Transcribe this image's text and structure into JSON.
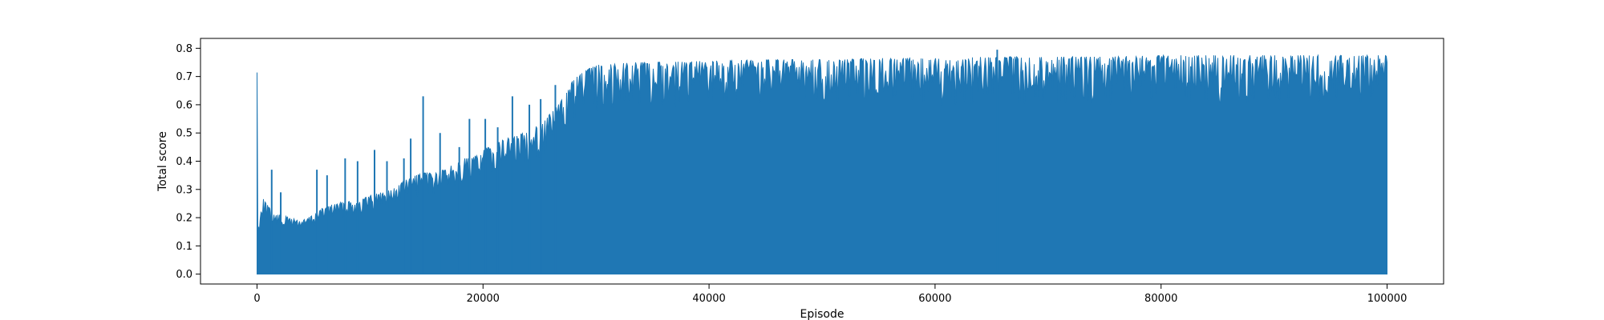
{
  "chart_data": {
    "type": "line",
    "title": "",
    "xlabel": "Episode",
    "ylabel": "Total score",
    "xlim": [
      -5000,
      105000
    ],
    "ylim": [
      -0.035,
      0.835
    ],
    "xticks": [
      0,
      20000,
      40000,
      60000,
      80000,
      100000
    ],
    "yticks": [
      0.0,
      0.1,
      0.2,
      0.3,
      0.4,
      0.5,
      0.6,
      0.7,
      0.8
    ],
    "grid": false,
    "legend": "none",
    "color": "#1f77b4",
    "series": [
      {
        "name": "",
        "x_range": [
          0,
          100000
        ],
        "lower_envelope": [
          [
            0,
            0.0
          ],
          [
            100000,
            0.0
          ]
        ],
        "upper_envelope": [
          [
            0,
            0.12
          ],
          [
            200,
            0.2
          ],
          [
            500,
            0.27
          ],
          [
            1000,
            0.24
          ],
          [
            1500,
            0.21
          ],
          [
            2000,
            0.21
          ],
          [
            3000,
            0.2
          ],
          [
            4000,
            0.19
          ],
          [
            5000,
            0.21
          ],
          [
            6000,
            0.24
          ],
          [
            7000,
            0.25
          ],
          [
            8000,
            0.26
          ],
          [
            9000,
            0.26
          ],
          [
            10000,
            0.28
          ],
          [
            11000,
            0.29
          ],
          [
            12000,
            0.3
          ],
          [
            13000,
            0.33
          ],
          [
            14000,
            0.35
          ],
          [
            15000,
            0.36
          ],
          [
            16000,
            0.36
          ],
          [
            17000,
            0.38
          ],
          [
            18000,
            0.41
          ],
          [
            19000,
            0.41
          ],
          [
            20000,
            0.44
          ],
          [
            21000,
            0.46
          ],
          [
            22000,
            0.48
          ],
          [
            23000,
            0.49
          ],
          [
            24000,
            0.51
          ],
          [
            25000,
            0.53
          ],
          [
            26000,
            0.57
          ],
          [
            27000,
            0.62
          ],
          [
            28000,
            0.69
          ],
          [
            29000,
            0.72
          ],
          [
            30000,
            0.74
          ],
          [
            32000,
            0.75
          ],
          [
            35000,
            0.75
          ],
          [
            40000,
            0.755
          ],
          [
            45000,
            0.76
          ],
          [
            50000,
            0.76
          ],
          [
            55000,
            0.765
          ],
          [
            60000,
            0.765
          ],
          [
            65000,
            0.77
          ],
          [
            70000,
            0.77
          ],
          [
            75000,
            0.77
          ],
          [
            80000,
            0.775
          ],
          [
            85000,
            0.775
          ],
          [
            90000,
            0.775
          ],
          [
            95000,
            0.775
          ],
          [
            100000,
            0.775
          ]
        ],
        "peaks": [
          [
            1300,
            0.37
          ],
          [
            2100,
            0.29
          ],
          [
            5300,
            0.37
          ],
          [
            6200,
            0.35
          ],
          [
            7800,
            0.41
          ],
          [
            8900,
            0.4
          ],
          [
            10400,
            0.44
          ],
          [
            11500,
            0.4
          ],
          [
            13000,
            0.41
          ],
          [
            13600,
            0.48
          ],
          [
            14700,
            0.63
          ],
          [
            16200,
            0.5
          ],
          [
            17900,
            0.45
          ],
          [
            18800,
            0.55
          ],
          [
            20200,
            0.55
          ],
          [
            21300,
            0.52
          ],
          [
            22600,
            0.63
          ],
          [
            24100,
            0.6
          ],
          [
            25100,
            0.62
          ],
          [
            26400,
            0.67
          ],
          [
            65500,
            0.795
          ]
        ]
      }
    ]
  }
}
